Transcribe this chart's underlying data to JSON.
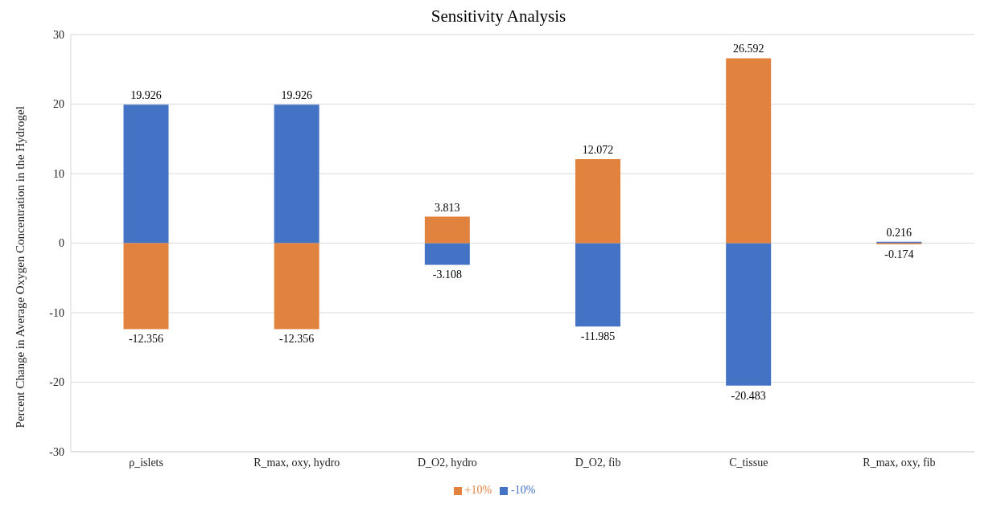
{
  "chart_data": {
    "type": "bar",
    "title": "Sensitivity Analysis",
    "ylabel": "Percent Change in Average Oxygen Concentration in the Hydrogel",
    "categories": [
      "ρ_islets",
      "R_max, oxy, hydro",
      "D_O2, hydro",
      "D_O2,  fib",
      "C_tissue",
      "R_max, oxy, fib"
    ],
    "series": [
      {
        "name": "-10%",
        "color": "#4472c4",
        "values": [
          19.926,
          19.926,
          -3.108,
          -11.985,
          -20.483,
          0.216
        ]
      },
      {
        "name": "+10%",
        "color": "#e2823f",
        "values": [
          -12.356,
          -12.356,
          3.813,
          12.072,
          26.592,
          -0.174
        ]
      }
    ],
    "stacked": true,
    "data_labels": true,
    "ylim": [
      -30,
      30
    ],
    "yticks": [
      -30,
      -20,
      -10,
      0,
      10,
      20,
      30
    ],
    "grid": "y",
    "legend": "bottom"
  }
}
